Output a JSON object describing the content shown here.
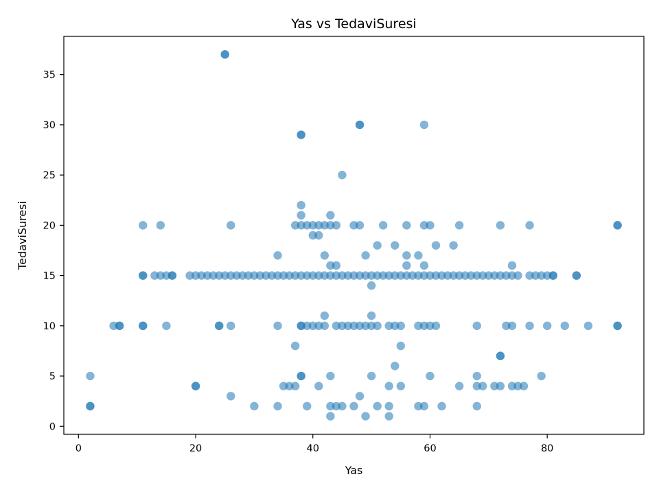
{
  "chart_data": {
    "type": "scatter",
    "title": "Yas vs TedaviSuresi",
    "xlabel": "Yas",
    "ylabel": "TedaviSuresi",
    "xlim": [
      -2.5,
      96.5
    ],
    "ylim": [
      -0.8,
      38.8
    ],
    "x_ticks": [
      0,
      20,
      40,
      60,
      80
    ],
    "y_ticks": [
      0,
      5,
      10,
      15,
      20,
      25,
      30,
      35
    ],
    "grid": false,
    "legend": "none",
    "color": "#1f77b4",
    "series": [
      {
        "points": [
          [
            2,
            2
          ],
          [
            2,
            2
          ],
          [
            2,
            5
          ],
          [
            6,
            10
          ],
          [
            7,
            10
          ],
          [
            7,
            10
          ],
          [
            11,
            15
          ],
          [
            11,
            15
          ],
          [
            11,
            20
          ],
          [
            11,
            10
          ],
          [
            11,
            10
          ],
          [
            13,
            15
          ],
          [
            14,
            15
          ],
          [
            14,
            20
          ],
          [
            15,
            15
          ],
          [
            15,
            10
          ],
          [
            16,
            15
          ],
          [
            16,
            15
          ],
          [
            19,
            15
          ],
          [
            20,
            15
          ],
          [
            20,
            4
          ],
          [
            20,
            4
          ],
          [
            21,
            15
          ],
          [
            22,
            15
          ],
          [
            23,
            15
          ],
          [
            24,
            15
          ],
          [
            24,
            10
          ],
          [
            24,
            10
          ],
          [
            25,
            15
          ],
          [
            25,
            37
          ],
          [
            25,
            37
          ],
          [
            26,
            15
          ],
          [
            26,
            20
          ],
          [
            26,
            10
          ],
          [
            26,
            3
          ],
          [
            27,
            15
          ],
          [
            28,
            15
          ],
          [
            29,
            15
          ],
          [
            30,
            15
          ],
          [
            30,
            2
          ],
          [
            31,
            15
          ],
          [
            32,
            15
          ],
          [
            33,
            15
          ],
          [
            34,
            15
          ],
          [
            34,
            17
          ],
          [
            34,
            10
          ],
          [
            34,
            2
          ],
          [
            35,
            15
          ],
          [
            35,
            4
          ],
          [
            36,
            15
          ],
          [
            36,
            4
          ],
          [
            37,
            15
          ],
          [
            37,
            20
          ],
          [
            37,
            8
          ],
          [
            37,
            4
          ],
          [
            38,
            15
          ],
          [
            38,
            29
          ],
          [
            38,
            29
          ],
          [
            38,
            22
          ],
          [
            38,
            21
          ],
          [
            38,
            20
          ],
          [
            38,
            10
          ],
          [
            38,
            10
          ],
          [
            38,
            5
          ],
          [
            38,
            5
          ],
          [
            39,
            15
          ],
          [
            39,
            20
          ],
          [
            39,
            10
          ],
          [
            39,
            2
          ],
          [
            40,
            15
          ],
          [
            40,
            20
          ],
          [
            40,
            19
          ],
          [
            40,
            10
          ],
          [
            41,
            15
          ],
          [
            41,
            20
          ],
          [
            41,
            19
          ],
          [
            41,
            10
          ],
          [
            41,
            4
          ],
          [
            42,
            15
          ],
          [
            42,
            20
          ],
          [
            42,
            17
          ],
          [
            42,
            11
          ],
          [
            42,
            10
          ],
          [
            43,
            15
          ],
          [
            43,
            21
          ],
          [
            43,
            20
          ],
          [
            43,
            16
          ],
          [
            43,
            5
          ],
          [
            43,
            2
          ],
          [
            43,
            1
          ],
          [
            44,
            15
          ],
          [
            44,
            20
          ],
          [
            44,
            16
          ],
          [
            44,
            10
          ],
          [
            44,
            2
          ],
          [
            45,
            15
          ],
          [
            45,
            25
          ],
          [
            45,
            10
          ],
          [
            45,
            2
          ],
          [
            46,
            15
          ],
          [
            46,
            10
          ],
          [
            47,
            15
          ],
          [
            47,
            20
          ],
          [
            47,
            10
          ],
          [
            47,
            2
          ],
          [
            48,
            15
          ],
          [
            48,
            30
          ],
          [
            48,
            30
          ],
          [
            48,
            20
          ],
          [
            48,
            10
          ],
          [
            48,
            3
          ],
          [
            49,
            15
          ],
          [
            49,
            17
          ],
          [
            49,
            10
          ],
          [
            49,
            1
          ],
          [
            50,
            15
          ],
          [
            50,
            14
          ],
          [
            50,
            11
          ],
          [
            50,
            10
          ],
          [
            50,
            5
          ],
          [
            51,
            15
          ],
          [
            51,
            18
          ],
          [
            51,
            10
          ],
          [
            51,
            2
          ],
          [
            52,
            15
          ],
          [
            52,
            20
          ],
          [
            53,
            15
          ],
          [
            53,
            10
          ],
          [
            53,
            4
          ],
          [
            53,
            2
          ],
          [
            53,
            1
          ],
          [
            54,
            15
          ],
          [
            54,
            18
          ],
          [
            54,
            10
          ],
          [
            54,
            6
          ],
          [
            55,
            15
          ],
          [
            55,
            10
          ],
          [
            55,
            8
          ],
          [
            55,
            4
          ],
          [
            56,
            15
          ],
          [
            56,
            20
          ],
          [
            56,
            17
          ],
          [
            56,
            16
          ],
          [
            57,
            15
          ],
          [
            58,
            15
          ],
          [
            58,
            17
          ],
          [
            58,
            10
          ],
          [
            58,
            2
          ],
          [
            59,
            15
          ],
          [
            59,
            30
          ],
          [
            59,
            20
          ],
          [
            59,
            16
          ],
          [
            59,
            10
          ],
          [
            59,
            2
          ],
          [
            60,
            15
          ],
          [
            60,
            20
          ],
          [
            60,
            10
          ],
          [
            60,
            5
          ],
          [
            61,
            15
          ],
          [
            61,
            18
          ],
          [
            61,
            10
          ],
          [
            62,
            15
          ],
          [
            62,
            2
          ],
          [
            63,
            15
          ],
          [
            64,
            15
          ],
          [
            64,
            18
          ],
          [
            65,
            15
          ],
          [
            65,
            20
          ],
          [
            65,
            4
          ],
          [
            66,
            15
          ],
          [
            67,
            15
          ],
          [
            68,
            15
          ],
          [
            68,
            10
          ],
          [
            68,
            5
          ],
          [
            68,
            4
          ],
          [
            68,
            2
          ],
          [
            69,
            15
          ],
          [
            69,
            4
          ],
          [
            70,
            15
          ],
          [
            71,
            15
          ],
          [
            71,
            4
          ],
          [
            72,
            15
          ],
          [
            72,
            20
          ],
          [
            72,
            7
          ],
          [
            72,
            7
          ],
          [
            72,
            4
          ],
          [
            73,
            15
          ],
          [
            73,
            10
          ],
          [
            74,
            15
          ],
          [
            74,
            16
          ],
          [
            74,
            10
          ],
          [
            74,
            4
          ],
          [
            75,
            15
          ],
          [
            75,
            4
          ],
          [
            76,
            4
          ],
          [
            77,
            15
          ],
          [
            77,
            20
          ],
          [
            77,
            10
          ],
          [
            78,
            15
          ],
          [
            79,
            15
          ],
          [
            79,
            5
          ],
          [
            80,
            15
          ],
          [
            80,
            10
          ],
          [
            81,
            15
          ],
          [
            81,
            15
          ],
          [
            83,
            10
          ],
          [
            85,
            15
          ],
          [
            85,
            15
          ],
          [
            87,
            10
          ],
          [
            92,
            20
          ],
          [
            92,
            20
          ],
          [
            92,
            10
          ],
          [
            92,
            10
          ]
        ]
      }
    ]
  }
}
